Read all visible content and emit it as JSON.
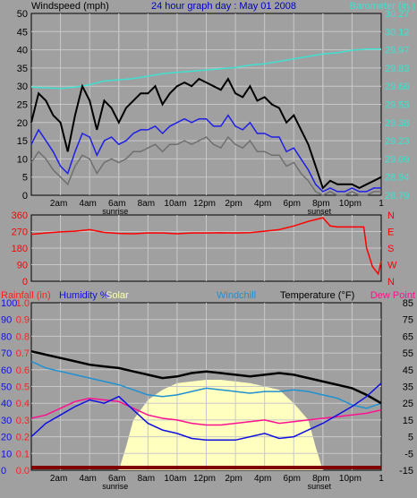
{
  "colors": {
    "background": "#a0a0a0",
    "frame": "#000000",
    "grid": "#c8c8c8",
    "windspeed": "#000000",
    "windavg": "#1f1fe6",
    "windgust": "#707070",
    "barometer": "#40e0d0",
    "winddir": "#ff0000",
    "rainfall": "#ff2020",
    "humidity": "#1010e0",
    "solar": "#ffffc0",
    "windchill": "#2090d0",
    "temperature": "#000000",
    "dewpoint": "#ff1090",
    "uv": "#800000"
  },
  "chart_data": [
    {
      "type": "line",
      "title": "24 hour graph day : May 01 2008",
      "left_label": "Windspeed (mph)",
      "right_label": "Barometer (in.)",
      "left_ticks": [
        0,
        5,
        10,
        15,
        20,
        25,
        30,
        35,
        40,
        45,
        50
      ],
      "right_ticks": [
        "28.79",
        "28.94",
        "29.09",
        "29.23",
        "29.38",
        "29.53",
        "29.68",
        "29.83",
        "29.97",
        "30.12",
        "30.27"
      ],
      "xlim": [
        0,
        24
      ],
      "x_ticks": [
        "2am",
        "4am",
        "6am",
        "8am",
        "10am",
        "12pm",
        "2pm",
        "4pm",
        "6pm",
        "8pm",
        "10pm"
      ],
      "x_tick_hours": [
        2,
        4,
        6,
        8,
        10,
        12,
        14,
        16,
        18,
        20,
        22
      ],
      "sunrise_label": "sunrise",
      "sunrise_hour": 6,
      "sunset_label": "sunset",
      "sunset_hour": 20,
      "series": [
        {
          "key": "barometer",
          "axis": "right",
          "x": [
            0,
            2,
            3,
            4,
            5,
            6,
            7,
            8,
            9,
            10,
            11,
            12,
            13,
            14,
            15,
            16,
            17,
            18,
            19,
            20,
            21,
            22,
            23,
            24
          ],
          "values": [
            29.67,
            29.66,
            29.67,
            29.69,
            29.72,
            29.73,
            29.74,
            29.76,
            29.78,
            29.79,
            29.8,
            29.81,
            29.82,
            29.83,
            29.85,
            29.86,
            29.88,
            29.9,
            29.92,
            29.94,
            29.95,
            29.97,
            29.98,
            29.98
          ]
        },
        {
          "key": "windspeed",
          "axis": "left",
          "x": [
            0,
            0.5,
            1,
            1.5,
            2,
            2.5,
            3,
            3.5,
            4,
            4.5,
            5,
            5.5,
            6,
            6.5,
            7,
            7.5,
            8,
            8.5,
            9,
            9.5,
            10,
            10.5,
            11,
            11.5,
            12,
            12.5,
            13,
            13.5,
            14,
            14.5,
            15,
            15.5,
            16,
            16.5,
            17,
            17.5,
            18,
            18.5,
            19,
            19.5,
            20,
            20.5,
            21,
            21.5,
            22,
            22.5,
            23,
            23.5,
            24
          ],
          "values": [
            20,
            28,
            26,
            22,
            20,
            12,
            22,
            30,
            26,
            18,
            26,
            24,
            20,
            24,
            26,
            28,
            28,
            30,
            25,
            28,
            30,
            31,
            30,
            32,
            31,
            30,
            29,
            32,
            28,
            27,
            30,
            26,
            27,
            25,
            24,
            20,
            22,
            18,
            14,
            8,
            2,
            4,
            3,
            3,
            3,
            2,
            3,
            4,
            5
          ]
        },
        {
          "key": "windavg",
          "axis": "left",
          "x": [
            0,
            0.5,
            1,
            1.5,
            2,
            2.5,
            3,
            3.5,
            4,
            4.5,
            5,
            5.5,
            6,
            6.5,
            7,
            7.5,
            8,
            8.5,
            9,
            9.5,
            10,
            10.5,
            11,
            11.5,
            12,
            12.5,
            13,
            13.5,
            14,
            14.5,
            15,
            15.5,
            16,
            16.5,
            17,
            17.5,
            18,
            18.5,
            19,
            19.5,
            20,
            20.5,
            21,
            21.5,
            22,
            22.5,
            23,
            23.5,
            24
          ],
          "values": [
            14,
            18,
            15,
            12,
            8,
            6,
            12,
            17,
            16,
            11,
            15,
            16,
            14,
            15,
            17,
            18,
            18,
            19,
            17,
            19,
            20,
            21,
            20,
            21,
            21,
            19,
            19,
            22,
            19,
            18,
            20,
            17,
            17,
            16,
            16,
            12,
            13,
            10,
            7,
            3,
            1,
            2,
            1,
            1,
            2,
            1,
            1,
            2,
            2
          ]
        },
        {
          "key": "windgust",
          "axis": "left",
          "x": [
            0,
            0.5,
            1,
            1.5,
            2,
            2.5,
            3,
            3.5,
            4,
            4.5,
            5,
            5.5,
            6,
            6.5,
            7,
            7.5,
            8,
            8.5,
            9,
            9.5,
            10,
            10.5,
            11,
            11.5,
            12,
            12.5,
            13,
            13.5,
            14,
            14.5,
            15,
            15.5,
            16,
            16.5,
            17,
            17.5,
            18,
            18.5,
            19,
            19.5,
            20,
            20.5,
            21,
            21.5,
            22,
            22.5,
            23,
            23.5,
            24
          ],
          "values": [
            9,
            12,
            10,
            7,
            5,
            3,
            8,
            11,
            10,
            6,
            9,
            10,
            9,
            10,
            12,
            12,
            13,
            14,
            12,
            14,
            14,
            15,
            14,
            15,
            16,
            14,
            13,
            16,
            14,
            13,
            15,
            12,
            12,
            11,
            11,
            8,
            9,
            6,
            4,
            1,
            0,
            1,
            0,
            0,
            1,
            0,
            0,
            1,
            1
          ]
        }
      ]
    },
    {
      "type": "line",
      "left_ticks": [
        0,
        90,
        180,
        270,
        360
      ],
      "right_ticks": [
        "N",
        "W",
        "S",
        "E",
        "N"
      ],
      "xlim": [
        0,
        24
      ],
      "series": [
        {
          "key": "winddir",
          "x": [
            0,
            1,
            2,
            3,
            4,
            5,
            6,
            7,
            8,
            9,
            10,
            11,
            12,
            13,
            14,
            15,
            16,
            17,
            18,
            19,
            19.5,
            20,
            20.5,
            21,
            22,
            22.8,
            23,
            23.4,
            23.8,
            24
          ],
          "values": [
            255,
            262,
            268,
            272,
            280,
            265,
            260,
            258,
            262,
            262,
            258,
            262,
            262,
            263,
            262,
            264,
            272,
            280,
            300,
            325,
            335,
            345,
            300,
            295,
            295,
            295,
            180,
            80,
            40,
            110
          ]
        }
      ]
    },
    {
      "type": "line",
      "legend": [
        "Rainfall (in)",
        "Humidity %",
        "Solar",
        "Windchill",
        "Temperature (°F)",
        "Dew Point"
      ],
      "left_ticks_rain": [
        "0.0",
        "0.1",
        "0.2",
        "0.3",
        "0.4",
        "0.5",
        "0.6",
        "0.7",
        "0.8",
        "0.9",
        "1.0"
      ],
      "left_ticks_humidity": [
        "0",
        "10",
        "20",
        "30",
        "40",
        "50",
        "60",
        "70",
        "80",
        "90",
        "100"
      ],
      "right_ticks": [
        "-15",
        "-5",
        "5",
        "15",
        "25",
        "35",
        "45",
        "55",
        "65",
        "75",
        "85"
      ],
      "xlim": [
        0,
        24
      ],
      "x_ticks": [
        "2am",
        "4am",
        "6am",
        "8am",
        "10am",
        "12pm",
        "2pm",
        "4pm",
        "6pm",
        "8pm",
        "10pm"
      ],
      "x_tick_hours": [
        2,
        4,
        6,
        8,
        10,
        12,
        14,
        16,
        18,
        20,
        22
      ],
      "sunrise_label": "sunrise",
      "sunrise_hour": 6,
      "sunset_label": "sunset",
      "sunset_hour": 20,
      "series": [
        {
          "key": "solar",
          "axis": "left",
          "x": [
            6,
            6.5,
            7,
            8,
            9,
            10,
            11,
            12,
            13,
            14,
            15,
            16,
            17,
            18,
            19,
            19.5,
            20
          ],
          "values": [
            0,
            14,
            30,
            42,
            48,
            52,
            53,
            54,
            54,
            53,
            52,
            50,
            48,
            40,
            30,
            14,
            0
          ]
        },
        {
          "key": "temperature",
          "axis": "right",
          "x": [
            0,
            1,
            2,
            3,
            4,
            5,
            6,
            7,
            8,
            9,
            10,
            11,
            12,
            13,
            14,
            15,
            16,
            17,
            18,
            19,
            20,
            21,
            22,
            23,
            24
          ],
          "values": [
            56,
            54,
            52,
            50,
            48,
            47,
            46,
            44,
            42,
            40,
            41,
            43,
            44,
            43,
            42,
            41,
            42,
            43,
            42,
            40,
            38,
            36,
            34,
            30,
            25
          ]
        },
        {
          "key": "windchill",
          "axis": "right",
          "x": [
            0,
            1,
            2,
            3,
            4,
            5,
            6,
            7,
            8,
            9,
            10,
            11,
            12,
            13,
            14,
            15,
            16,
            17,
            18,
            19,
            20,
            21,
            22,
            23,
            24
          ],
          "values": [
            50,
            46,
            44,
            42,
            40,
            38,
            36,
            33,
            30,
            29,
            30,
            32,
            34,
            33,
            32,
            31,
            32,
            32,
            33,
            32,
            30,
            28,
            24,
            22,
            25
          ]
        },
        {
          "key": "humidity",
          "axis": "left",
          "x": [
            0,
            1,
            2,
            3,
            4,
            5,
            6,
            7,
            8,
            9,
            10,
            11,
            12,
            13,
            14,
            15,
            16,
            17,
            18,
            19,
            20,
            21,
            22,
            23,
            24
          ],
          "values": [
            20,
            28,
            33,
            38,
            42,
            40,
            44,
            36,
            28,
            24,
            22,
            19,
            18,
            18,
            18,
            20,
            22,
            19,
            20,
            24,
            28,
            33,
            38,
            44,
            52
          ]
        },
        {
          "key": "dewpoint",
          "axis": "right",
          "x": [
            0,
            1,
            2,
            3,
            4,
            5,
            6,
            7,
            8,
            9,
            10,
            11,
            12,
            13,
            14,
            15,
            16,
            17,
            18,
            19,
            20,
            21,
            22,
            23,
            24
          ],
          "values": [
            16,
            18,
            22,
            26,
            28,
            27,
            26,
            22,
            18,
            16,
            15,
            13,
            12,
            12,
            13,
            14,
            15,
            13,
            14,
            15,
            16,
            17,
            18,
            19,
            21
          ]
        }
      ]
    }
  ]
}
